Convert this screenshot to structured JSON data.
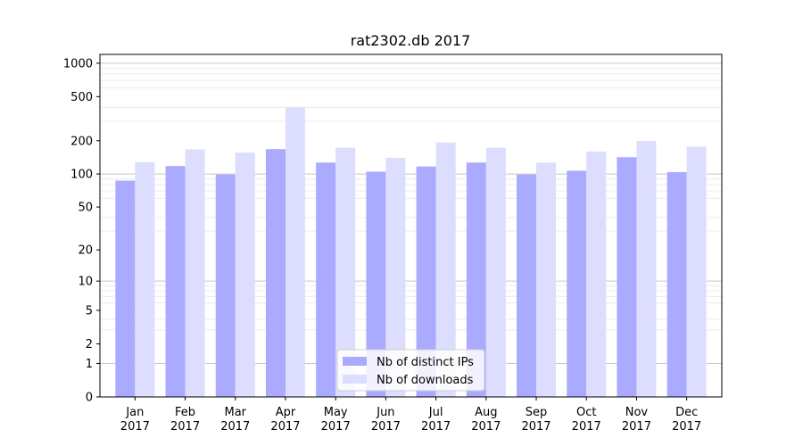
{
  "chart_data": {
    "type": "bar",
    "title": "rat2302.db 2017",
    "xlabel": "",
    "ylabel": "",
    "y_scale": "log(1+y)",
    "ylim": [
      0,
      1200
    ],
    "y_ticks": [
      0,
      1,
      2,
      5,
      10,
      20,
      50,
      100,
      200,
      500,
      1000
    ],
    "grid": true,
    "legend_placement": "bottom-center",
    "categories": [
      {
        "month": "Jan",
        "year": "2017"
      },
      {
        "month": "Feb",
        "year": "2017"
      },
      {
        "month": "Mar",
        "year": "2017"
      },
      {
        "month": "Apr",
        "year": "2017"
      },
      {
        "month": "May",
        "year": "2017"
      },
      {
        "month": "Jun",
        "year": "2017"
      },
      {
        "month": "Jul",
        "year": "2017"
      },
      {
        "month": "Aug",
        "year": "2017"
      },
      {
        "month": "Sep",
        "year": "2017"
      },
      {
        "month": "Oct",
        "year": "2017"
      },
      {
        "month": "Nov",
        "year": "2017"
      },
      {
        "month": "Dec",
        "year": "2017"
      }
    ],
    "series": [
      {
        "name": "Nb of distinct IPs",
        "color": "#aaaaff",
        "values": [
          87,
          118,
          99,
          168,
          127,
          105,
          117,
          127,
          99,
          107,
          142,
          104
        ]
      },
      {
        "name": "Nb of downloads",
        "color": "#ddddff",
        "values": [
          128,
          167,
          156,
          400,
          173,
          140,
          193,
          173,
          127,
          160,
          199,
          177
        ]
      }
    ]
  }
}
